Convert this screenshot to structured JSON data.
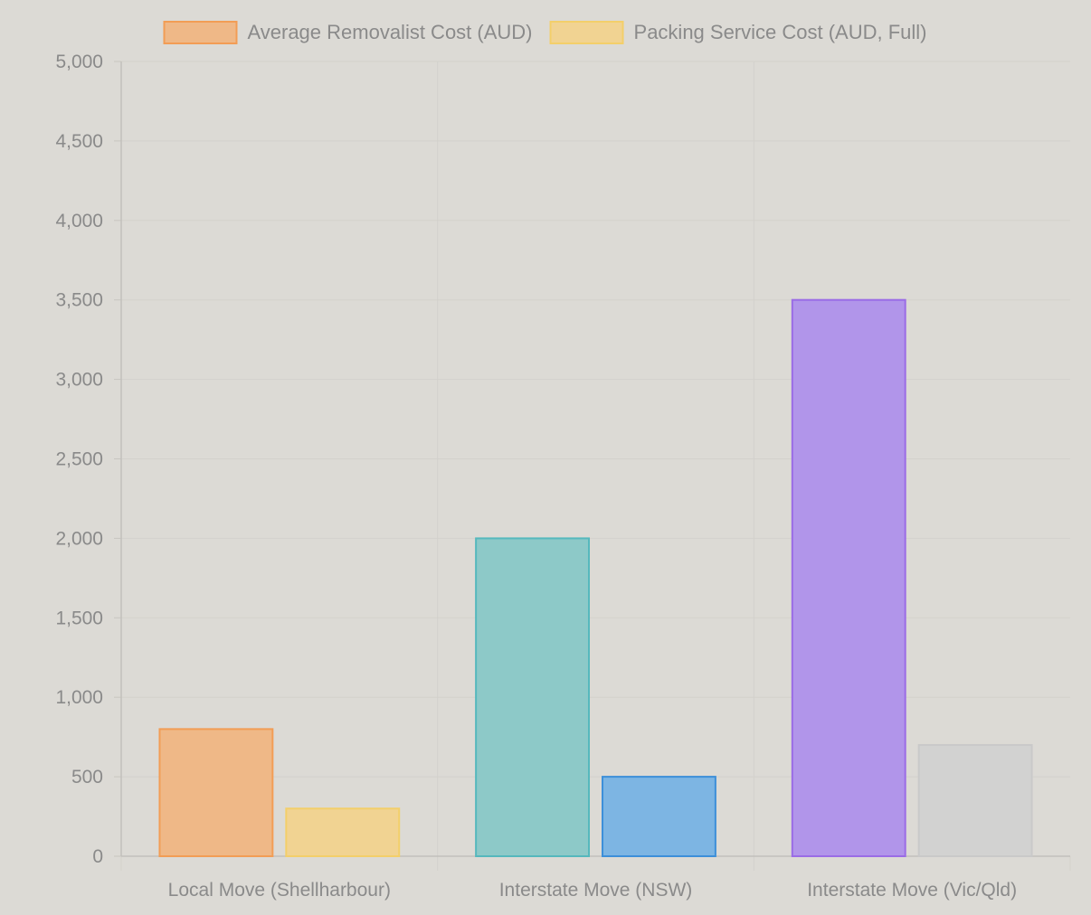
{
  "chart_data": {
    "type": "bar",
    "categories": [
      "Local Move (Shellharbour)",
      "Interstate Move (NSW)",
      "Interstate Move (Vic/Qld)"
    ],
    "series": [
      {
        "name": "Average Removalist Cost (AUD)",
        "values": [
          800,
          2000,
          3500
        ],
        "legend_fill": "#efb887",
        "legend_stroke": "#f29d55",
        "fills": [
          "#efb887",
          "#8dc9c8",
          "#b195ea"
        ],
        "strokes": [
          "#f29d55",
          "#55b8bd",
          "#9a6ce6"
        ]
      },
      {
        "name": "Packing Service Cost (AUD, Full)",
        "values": [
          300,
          500,
          700
        ],
        "legend_fill": "#f1d392",
        "legend_stroke": "#f3cf6a",
        "fills": [
          "#f1d392",
          "#7db5e3",
          "#d2d2d1"
        ],
        "strokes": [
          "#f3cf6a",
          "#3d8fd9",
          "#c9c9c9"
        ]
      }
    ],
    "ylim": [
      0,
      5000
    ],
    "yticks": [
      0,
      500,
      1000,
      1500,
      2000,
      2500,
      3000,
      3500,
      4000,
      4500,
      5000
    ],
    "grid": true,
    "legend_position": "top"
  }
}
